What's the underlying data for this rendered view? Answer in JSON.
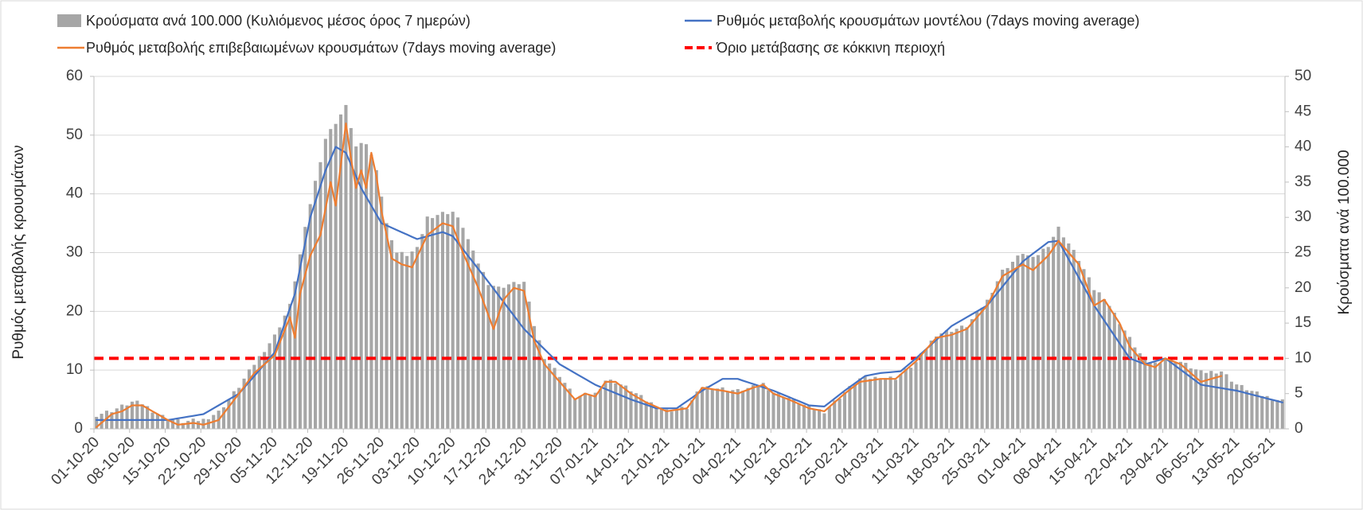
{
  "chart_data": {
    "type": "bar+line",
    "title": "",
    "ylabel": "Ρυθμός μεταβολής κρουσμάτων",
    "y2label": "Κρούσματα ανά 100.000",
    "ylim": [
      0,
      60
    ],
    "y2lim": [
      0,
      50
    ],
    "yticks": [
      0,
      10,
      20,
      30,
      40,
      50,
      60
    ],
    "y2ticks": [
      0,
      5,
      10,
      15,
      20,
      25,
      30,
      35,
      40,
      45,
      50
    ],
    "grid": "horizontal",
    "legend_position": "top",
    "x_start": "2020-10-01",
    "x_end": "2021-05-22",
    "xtick_labels": [
      "01-10-20",
      "08-10-20",
      "15-10-20",
      "22-10-20",
      "29-10-20",
      "05-11-20",
      "12-11-20",
      "19-11-20",
      "26-11-20",
      "03-12-20",
      "10-12-20",
      "17-12-20",
      "24-12-20",
      "31-12-20",
      "07-01-21",
      "14-01-21",
      "21-01-21",
      "28-01-21",
      "04-02-21",
      "11-02-21",
      "18-02-21",
      "25-02-21",
      "04-03-21",
      "11-03-21",
      "18-03-21",
      "25-03-21",
      "01-04-21",
      "08-04-21",
      "15-04-21",
      "22-04-21",
      "29-04-21",
      "06-05-21",
      "13-05-21",
      "20-05-21"
    ],
    "series": [
      {
        "name": "Κρούσματα ανά 100.000 (Κυλιόμενος μέσος όρος 7 ημερών)",
        "kind": "bar",
        "axis": "right",
        "color": "#a6a6a6",
        "anchors": [
          [
            "01-10-20",
            2.0
          ],
          [
            "04-10-20",
            2.6
          ],
          [
            "08-10-20",
            3.8
          ],
          [
            "10-10-20",
            3.6
          ],
          [
            "12-10-20",
            2.6
          ],
          [
            "15-10-20",
            1.4
          ],
          [
            "18-10-20",
            1.0
          ],
          [
            "22-10-20",
            1.3
          ],
          [
            "25-10-20",
            2.4
          ],
          [
            "29-10-20",
            6.0
          ],
          [
            "01-11-20",
            9.2
          ],
          [
            "05-11-20",
            13.2
          ],
          [
            "08-11-20",
            17.5
          ],
          [
            "10-11-20",
            24.7
          ],
          [
            "12-11-20",
            32.0
          ],
          [
            "15-11-20",
            41.2
          ],
          [
            "17-11-20",
            43.5
          ],
          [
            "19-11-20",
            45.7
          ],
          [
            "21-11-20",
            40.0
          ],
          [
            "23-11-20",
            40.5
          ],
          [
            "25-11-20",
            37.0
          ],
          [
            "27-11-20",
            29.0
          ],
          [
            "29-11-20",
            25.0
          ],
          [
            "01-12-20",
            24.7
          ],
          [
            "03-12-20",
            25.5
          ],
          [
            "05-12-20",
            30.0
          ],
          [
            "08-12-20",
            30.6
          ],
          [
            "10-12-20",
            30.8
          ],
          [
            "12-12-20",
            28.7
          ],
          [
            "14-12-20",
            25.0
          ],
          [
            "17-12-20",
            20.7
          ],
          [
            "19-12-20",
            20.0
          ],
          [
            "21-12-20",
            20.5
          ],
          [
            "24-12-20",
            20.8
          ],
          [
            "26-12-20",
            14.7
          ],
          [
            "28-12-20",
            10.2
          ],
          [
            "31-12-20",
            7.6
          ],
          [
            "03-01-21",
            4.4
          ],
          [
            "05-01-21",
            4.8
          ],
          [
            "07-01-21",
            5.0
          ],
          [
            "09-01-21",
            6.9
          ],
          [
            "11-01-21",
            6.7
          ],
          [
            "14-01-21",
            5.5
          ],
          [
            "17-01-21",
            4.0
          ],
          [
            "21-01-21",
            2.6
          ],
          [
            "25-01-21",
            3.0
          ],
          [
            "28-01-21",
            6.0
          ],
          [
            "01-02-21",
            5.7
          ],
          [
            "04-02-21",
            5.4
          ],
          [
            "07-02-21",
            5.9
          ],
          [
            "09-02-21",
            6.4
          ],
          [
            "11-02-21",
            5.2
          ],
          [
            "14-02-21",
            4.4
          ],
          [
            "18-02-21",
            3.0
          ],
          [
            "21-02-21",
            2.5
          ],
          [
            "25-02-21",
            5.2
          ],
          [
            "28-02-21",
            7.1
          ],
          [
            "04-03-21",
            7.3
          ],
          [
            "07-03-21",
            7.2
          ],
          [
            "11-03-21",
            9.4
          ],
          [
            "15-03-21",
            13.4
          ],
          [
            "18-03-21",
            14.0
          ],
          [
            "21-03-21",
            14.6
          ],
          [
            "25-03-21",
            18.2
          ],
          [
            "28-03-21",
            22.4
          ],
          [
            "01-04-21",
            25.0
          ],
          [
            "03-04-21",
            24.1
          ],
          [
            "06-04-21",
            26.1
          ],
          [
            "08-04-21",
            28.5
          ],
          [
            "10-04-21",
            26.3
          ],
          [
            "12-04-21",
            24.0
          ],
          [
            "15-04-21",
            19.8
          ],
          [
            "17-04-21",
            18.7
          ],
          [
            "20-04-21",
            15.1
          ],
          [
            "22-04-21",
            12.8
          ],
          [
            "25-04-21",
            9.6
          ],
          [
            "27-04-21",
            9.3
          ],
          [
            "29-04-21",
            10.0
          ],
          [
            "02-05-21",
            9.5
          ],
          [
            "06-05-21",
            8.0
          ],
          [
            "10-05-21",
            8.2
          ],
          [
            "13-05-21",
            6.3
          ],
          [
            "17-05-21",
            5.0
          ],
          [
            "20-05-21",
            4.3
          ],
          [
            "22-05-21",
            4.0
          ]
        ]
      },
      {
        "name": "Ρυθμός μεταβολής κρουσμάτων μοντέλου (7days moving average)",
        "kind": "line",
        "axis": "left",
        "color": "#4472c4",
        "anchors": [
          [
            "01-10-20",
            1.5
          ],
          [
            "15-10-20",
            1.5
          ],
          [
            "22-10-20",
            2.5
          ],
          [
            "29-10-20",
            6.0
          ],
          [
            "05-11-20",
            13.0
          ],
          [
            "09-11-20",
            23.0
          ],
          [
            "12-11-20",
            36.0
          ],
          [
            "15-11-20",
            44.0
          ],
          [
            "17-11-20",
            48.0
          ],
          [
            "19-11-20",
            47.0
          ],
          [
            "22-11-20",
            41.0
          ],
          [
            "26-11-20",
            35.0
          ],
          [
            "03-12-20",
            32.3
          ],
          [
            "08-12-20",
            33.5
          ],
          [
            "10-12-20",
            32.8
          ],
          [
            "17-12-20",
            25.0
          ],
          [
            "24-12-20",
            17.0
          ],
          [
            "31-12-20",
            11.0
          ],
          [
            "07-01-21",
            7.5
          ],
          [
            "14-01-21",
            5.0
          ],
          [
            "19-01-21",
            3.5
          ],
          [
            "23-01-21",
            3.5
          ],
          [
            "28-01-21",
            6.5
          ],
          [
            "01-02-21",
            8.5
          ],
          [
            "04-02-21",
            8.5
          ],
          [
            "11-02-21",
            6.5
          ],
          [
            "18-02-21",
            4.0
          ],
          [
            "21-02-21",
            3.8
          ],
          [
            "25-02-21",
            6.5
          ],
          [
            "01-03-21",
            9.0
          ],
          [
            "04-03-21",
            9.5
          ],
          [
            "08-03-21",
            9.8
          ],
          [
            "11-03-21",
            12.0
          ],
          [
            "18-03-21",
            17.5
          ],
          [
            "25-03-21",
            21.0
          ],
          [
            "01-04-21",
            28.5
          ],
          [
            "06-04-21",
            31.8
          ],
          [
            "08-04-21",
            32.0
          ],
          [
            "15-04-21",
            21.0
          ],
          [
            "22-04-21",
            12.0
          ],
          [
            "25-04-21",
            11.0
          ],
          [
            "29-04-21",
            12.0
          ],
          [
            "06-05-21",
            7.5
          ],
          [
            "13-05-21",
            6.5
          ],
          [
            "22-05-21",
            4.5
          ]
        ]
      },
      {
        "name": "Ρυθμός μεταβολής επιβεβαιωμένων κρουσμάτων (7days moving average)",
        "kind": "line",
        "axis": "left",
        "color": "#ed7d31",
        "anchors": [
          [
            "01-10-20",
            0.3
          ],
          [
            "04-10-20",
            2.5
          ],
          [
            "06-10-20",
            3.0
          ],
          [
            "08-10-20",
            4.0
          ],
          [
            "10-10-20",
            4.0
          ],
          [
            "12-10-20",
            3.0
          ],
          [
            "15-10-20",
            1.5
          ],
          [
            "17-10-20",
            0.7
          ],
          [
            "20-10-20",
            1.0
          ],
          [
            "22-10-20",
            0.7
          ],
          [
            "25-10-20",
            1.5
          ],
          [
            "29-10-20",
            6.0
          ],
          [
            "01-11-20",
            9.5
          ],
          [
            "05-11-20",
            12.5
          ],
          [
            "08-11-20",
            19.0
          ],
          [
            "09-11-20",
            15.5
          ],
          [
            "10-11-20",
            23.0
          ],
          [
            "12-11-20",
            29.5
          ],
          [
            "14-11-20",
            33.0
          ],
          [
            "16-11-20",
            42.0
          ],
          [
            "17-11-20",
            38.0
          ],
          [
            "18-11-20",
            45.0
          ],
          [
            "19-11-20",
            52.0
          ],
          [
            "20-11-20",
            46.0
          ],
          [
            "21-11-20",
            41.0
          ],
          [
            "22-11-20",
            44.0
          ],
          [
            "23-11-20",
            41.0
          ],
          [
            "24-11-20",
            47.0
          ],
          [
            "25-11-20",
            43.0
          ],
          [
            "26-11-20",
            37.0
          ],
          [
            "28-11-20",
            29.0
          ],
          [
            "30-11-20",
            28.0
          ],
          [
            "02-12-20",
            27.5
          ],
          [
            "05-12-20",
            33.0
          ],
          [
            "08-12-20",
            35.0
          ],
          [
            "10-12-20",
            34.5
          ],
          [
            "12-12-20",
            30.0
          ],
          [
            "15-12-20",
            24.0
          ],
          [
            "18-12-20",
            17.0
          ],
          [
            "20-12-20",
            22.0
          ],
          [
            "22-12-20",
            24.0
          ],
          [
            "24-12-20",
            23.5
          ],
          [
            "26-12-20",
            15.0
          ],
          [
            "28-12-20",
            11.0
          ],
          [
            "31-12-20",
            8.0
          ],
          [
            "03-01-21",
            5.0
          ],
          [
            "05-01-21",
            6.0
          ],
          [
            "07-01-21",
            5.5
          ],
          [
            "09-01-21",
            8.0
          ],
          [
            "11-01-21",
            8.0
          ],
          [
            "14-01-21",
            6.0
          ],
          [
            "17-01-21",
            4.5
          ],
          [
            "21-01-21",
            3.0
          ],
          [
            "25-01-21",
            3.5
          ],
          [
            "28-01-21",
            7.0
          ],
          [
            "01-02-21",
            6.5
          ],
          [
            "04-02-21",
            6.0
          ],
          [
            "07-02-21",
            7.0
          ],
          [
            "09-02-21",
            7.5
          ],
          [
            "11-02-21",
            6.0
          ],
          [
            "14-02-21",
            5.0
          ],
          [
            "18-02-21",
            3.5
          ],
          [
            "21-02-21",
            3.0
          ],
          [
            "25-02-21",
            6.0
          ],
          [
            "28-02-21",
            8.0
          ],
          [
            "04-03-21",
            8.5
          ],
          [
            "07-03-21",
            8.5
          ],
          [
            "11-03-21",
            11.5
          ],
          [
            "15-03-21",
            15.5
          ],
          [
            "18-03-21",
            16.0
          ],
          [
            "21-03-21",
            17.0
          ],
          [
            "25-03-21",
            21.0
          ],
          [
            "28-03-21",
            26.0
          ],
          [
            "01-04-21",
            28.0
          ],
          [
            "03-04-21",
            27.0
          ],
          [
            "06-04-21",
            29.5
          ],
          [
            "08-04-21",
            32.0
          ],
          [
            "10-04-21",
            30.0
          ],
          [
            "12-04-21",
            28.0
          ],
          [
            "15-04-21",
            21.0
          ],
          [
            "17-04-21",
            22.0
          ],
          [
            "20-04-21",
            18.0
          ],
          [
            "22-04-21",
            14.0
          ],
          [
            "25-04-21",
            11.0
          ],
          [
            "27-04-21",
            10.5
          ],
          [
            "29-04-21",
            12.0
          ],
          [
            "02-05-21",
            11.0
          ],
          [
            "06-05-21",
            8.0
          ],
          [
            "10-05-21",
            9.0
          ]
        ]
      },
      {
        "name": "Όριο μετάβασης σε κόκκινη περιοχή",
        "kind": "threshold",
        "axis": "left",
        "color": "#ff0000",
        "value": 12
      }
    ]
  }
}
